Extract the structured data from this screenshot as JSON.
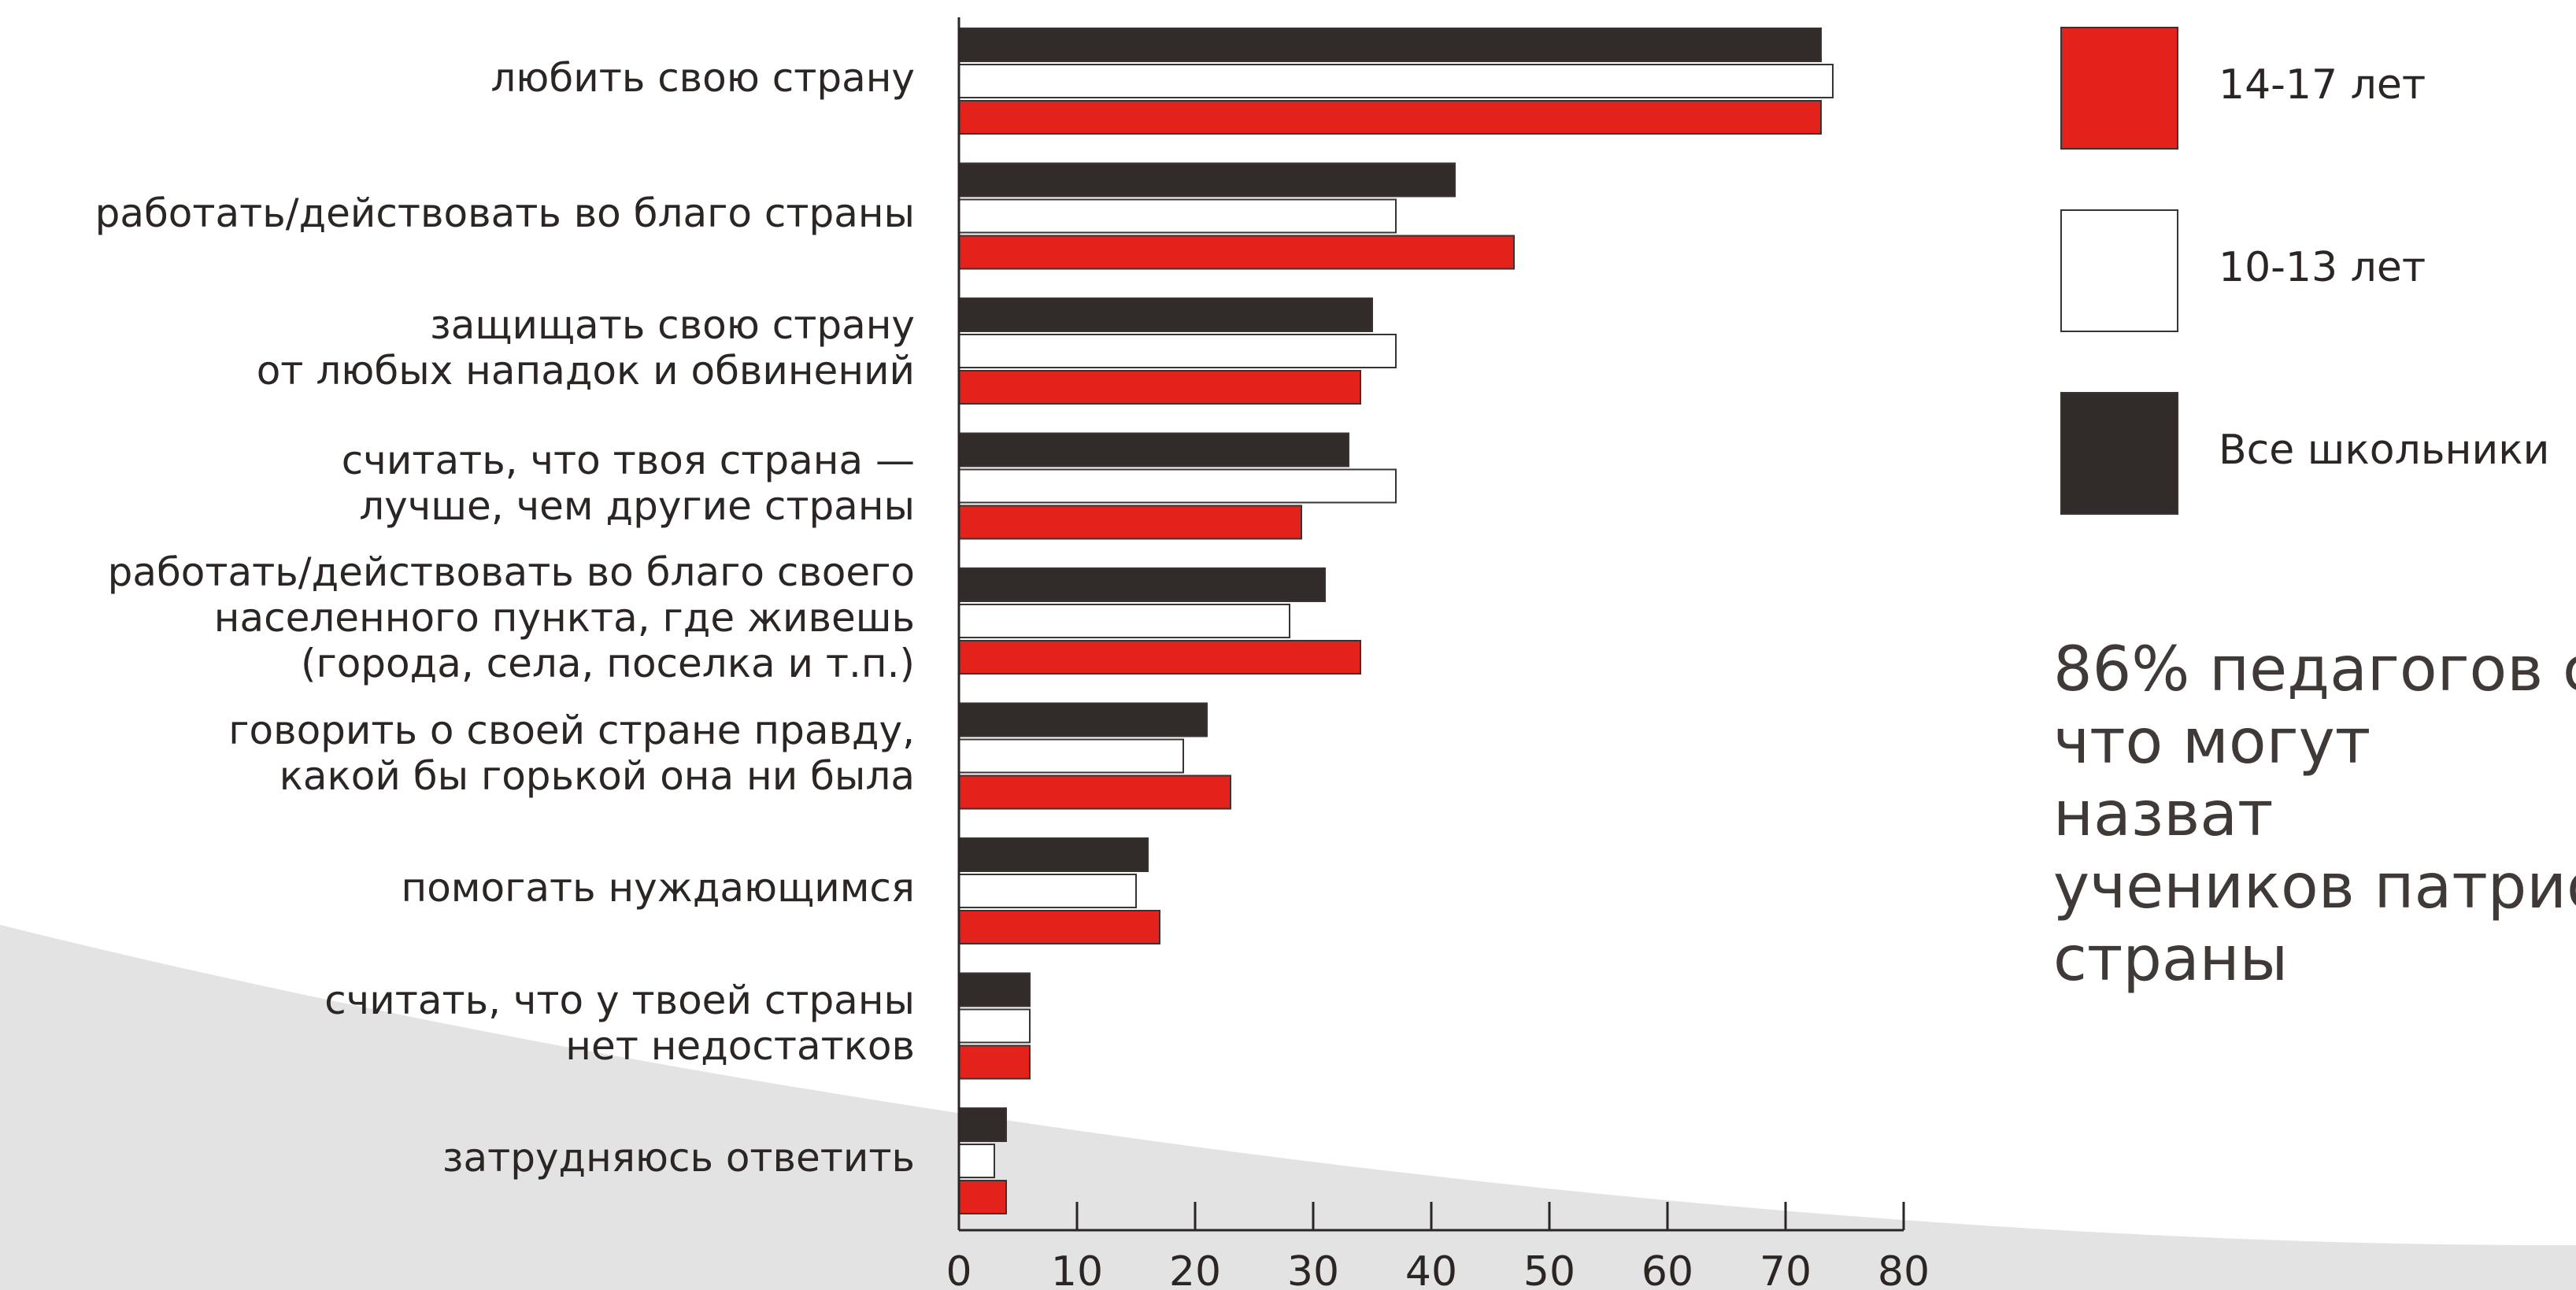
{
  "colors": {
    "all_students": "#312b29",
    "age_10_13": "#ffffff",
    "age_14_17": "#e3231b",
    "background_curve": "#e3e3e3",
    "axis": "#2b2624"
  },
  "legend": [
    {
      "key": "age_14_17",
      "label": "14-17 лет"
    },
    {
      "key": "age_10_13",
      "label": "10-13 лет"
    },
    {
      "key": "all_students",
      "label": "Все школьники"
    }
  ],
  "side_note": "86% педагогов с\nчто могут назват\nучеников патрио\nстраны",
  "chart_data": {
    "type": "bar",
    "orientation": "horizontal",
    "categories": [
      "любить свою страну",
      "работать/действовать во благо страны",
      "защищать свою страну\nот любых нападок и обвинений",
      "считать, что твоя страна —\nлучше, чем другие страны",
      "работать/действовать во благо своего\nнаселенного пункта, где живешь\n(города, села, поселка и т.п.)",
      "говорить о своей стране правду,\nкакой бы горькой она ни была",
      "помогать нуждающимся",
      "считать, что у твоей страны\nнет недостатков",
      "затрудняюсь ответить"
    ],
    "series": [
      {
        "name": "Все школьники",
        "key": "all_students",
        "values": [
          73,
          42,
          35,
          33,
          31,
          21,
          16,
          6,
          4
        ]
      },
      {
        "name": "10-13 лет",
        "key": "age_10_13",
        "values": [
          74,
          37,
          37,
          37,
          28,
          19,
          15,
          6,
          3
        ]
      },
      {
        "name": "14-17 лет",
        "key": "age_14_17",
        "values": [
          73,
          47,
          34,
          29,
          34,
          23,
          17,
          6,
          4
        ]
      }
    ],
    "xlim": [
      0,
      80
    ],
    "xticks": [
      0,
      10,
      20,
      30,
      40,
      50,
      60,
      70,
      80
    ],
    "xlabel": "",
    "ylabel": "",
    "title": "",
    "grid": false
  }
}
